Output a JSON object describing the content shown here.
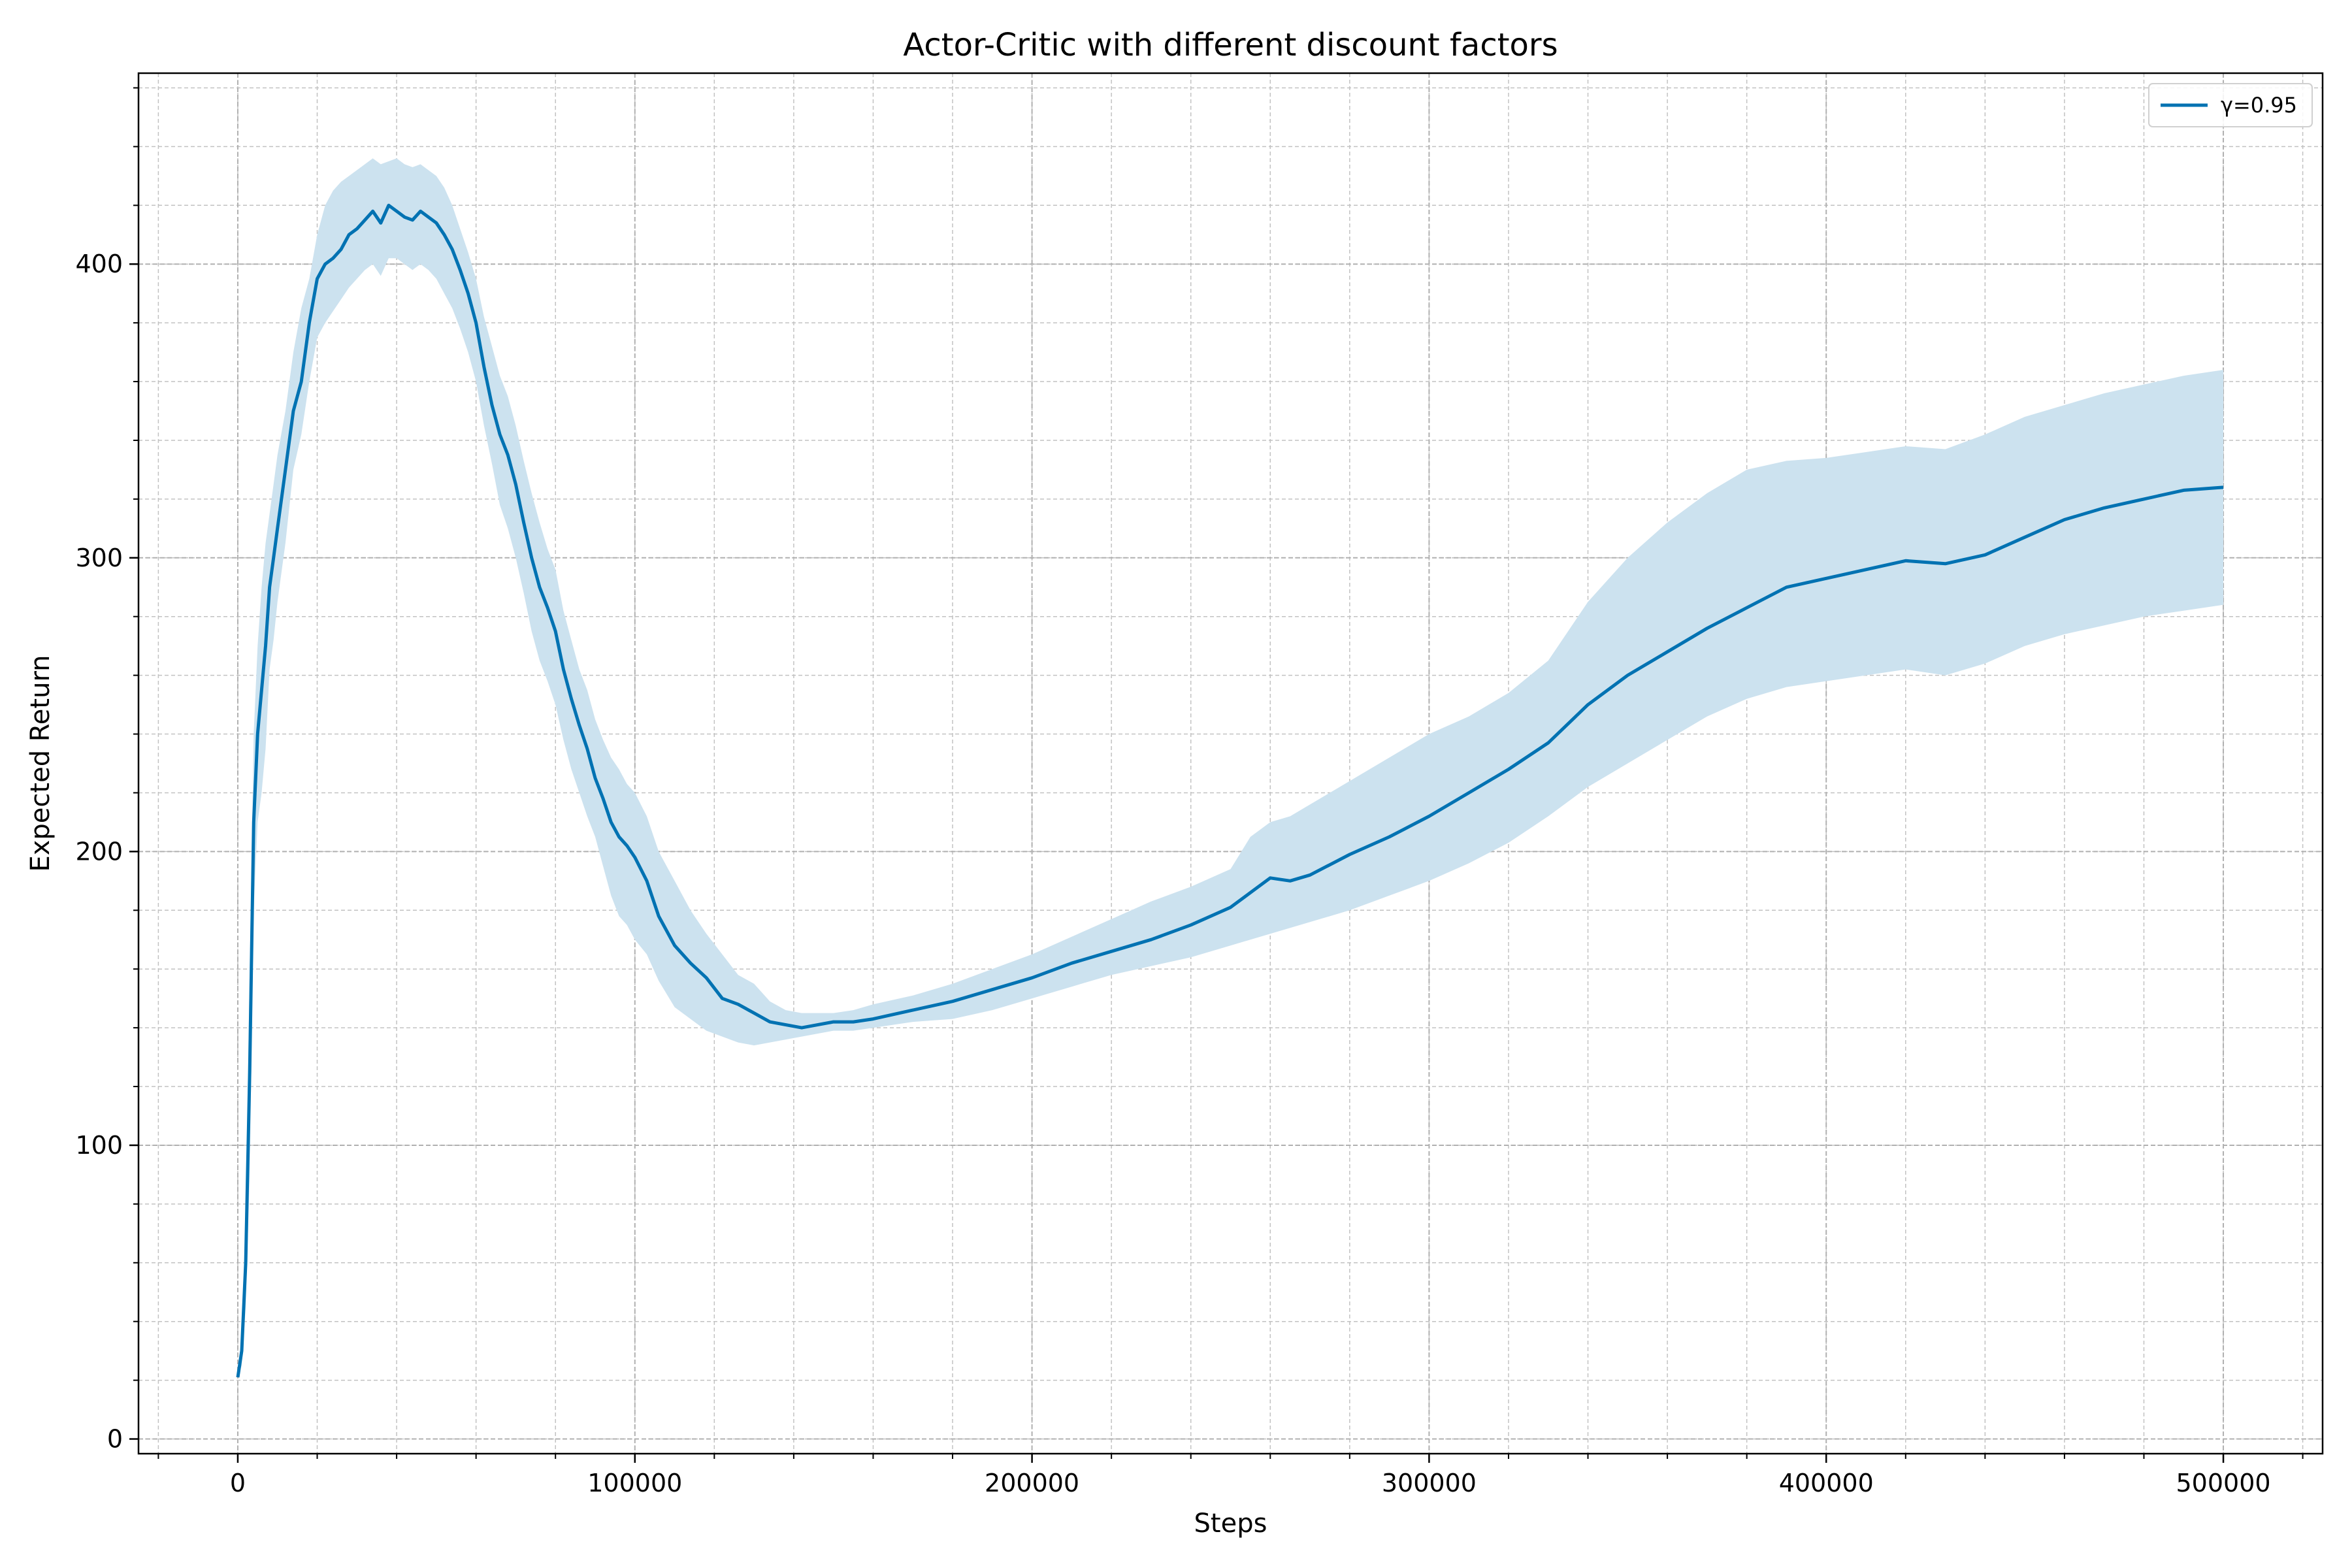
{
  "chart_data": {
    "type": "line",
    "title": "Actor-Critic with different discount factors",
    "xlabel": "Steps",
    "ylabel": "Expected Return",
    "xlim": [
      -25000,
      525000
    ],
    "ylim": [
      -5,
      465
    ],
    "xticks": [
      0,
      100000,
      200000,
      300000,
      400000,
      500000
    ],
    "yticks": [
      0,
      100,
      200,
      300,
      400
    ],
    "x_minor_step": 20000,
    "y_minor_step": 20,
    "grid": true,
    "legend_position": "top-right",
    "series": [
      {
        "name": "γ=0.95",
        "color": "#0072b2",
        "band_color": "#cce2ef",
        "x": [
          0,
          1000,
          2000,
          3000,
          4000,
          5000,
          6000,
          7000,
          8000,
          9000,
          10000,
          12000,
          14000,
          16000,
          18000,
          20000,
          22000,
          24000,
          26000,
          28000,
          30000,
          32000,
          34000,
          36000,
          38000,
          40000,
          42000,
          44000,
          46000,
          48000,
          50000,
          52000,
          54000,
          56000,
          58000,
          60000,
          62000,
          64000,
          66000,
          68000,
          70000,
          72000,
          74000,
          76000,
          78000,
          80000,
          82000,
          84000,
          86000,
          88000,
          90000,
          92000,
          94000,
          96000,
          98000,
          100000,
          103000,
          106000,
          110000,
          114000,
          118000,
          122000,
          126000,
          130000,
          134000,
          138000,
          142000,
          146000,
          150000,
          155000,
          160000,
          170000,
          180000,
          190000,
          200000,
          210000,
          220000,
          230000,
          240000,
          250000,
          255000,
          260000,
          265000,
          270000,
          280000,
          290000,
          300000,
          310000,
          320000,
          330000,
          340000,
          350000,
          360000,
          370000,
          380000,
          390000,
          400000,
          410000,
          420000,
          430000,
          440000,
          450000,
          460000,
          470000,
          480000,
          490000,
          500000
        ],
        "mean": [
          21,
          30,
          60,
          125,
          210,
          240,
          255,
          270,
          290,
          300,
          310,
          330,
          350,
          360,
          380,
          395,
          400,
          402,
          405,
          410,
          412,
          415,
          418,
          414,
          420,
          418,
          416,
          415,
          418,
          416,
          414,
          410,
          405,
          398,
          390,
          380,
          365,
          352,
          342,
          335,
          325,
          312,
          300,
          290,
          283,
          275,
          262,
          252,
          243,
          235,
          225,
          218,
          210,
          205,
          202,
          198,
          190,
          178,
          168,
          162,
          157,
          150,
          148,
          145,
          142,
          141,
          140,
          141,
          142,
          142,
          143,
          146,
          149,
          153,
          157,
          162,
          166,
          170,
          175,
          181,
          186,
          191,
          190,
          192,
          199,
          205,
          212,
          220,
          228,
          237,
          250,
          260,
          268,
          276,
          283,
          290,
          293,
          296,
          299,
          298,
          301,
          307,
          313,
          317,
          320,
          323,
          324
        ],
        "upper": [
          21,
          35,
          75,
          160,
          240,
          270,
          290,
          305,
          315,
          325,
          335,
          350,
          370,
          385,
          395,
          410,
          420,
          425,
          428,
          430,
          432,
          434,
          436,
          434,
          435,
          436,
          434,
          433,
          434,
          432,
          430,
          426,
          420,
          412,
          404,
          395,
          382,
          372,
          362,
          355,
          345,
          333,
          322,
          312,
          303,
          296,
          282,
          272,
          262,
          255,
          245,
          238,
          232,
          228,
          223,
          220,
          212,
          200,
          190,
          180,
          172,
          165,
          158,
          155,
          149,
          146,
          145,
          145,
          145,
          146,
          148,
          151,
          155,
          160,
          165,
          171,
          177,
          183,
          188,
          194,
          205,
          210,
          212,
          216,
          224,
          232,
          240,
          246,
          254,
          265,
          285,
          300,
          312,
          322,
          330,
          333,
          334,
          336,
          338,
          337,
          342,
          348,
          352,
          356,
          359,
          362,
          364
        ],
        "lower": [
          21,
          25,
          45,
          90,
          180,
          210,
          220,
          235,
          262,
          272,
          285,
          305,
          330,
          342,
          360,
          375,
          380,
          384,
          388,
          392,
          395,
          398,
          400,
          396,
          402,
          402,
          400,
          398,
          400,
          398,
          395,
          390,
          385,
          378,
          370,
          360,
          345,
          332,
          318,
          310,
          300,
          288,
          275,
          265,
          258,
          250,
          238,
          228,
          220,
          212,
          205,
          195,
          185,
          178,
          175,
          170,
          165,
          156,
          147,
          143,
          139,
          137,
          135,
          134,
          135,
          136,
          137,
          138,
          139,
          139,
          140,
          142,
          143,
          146,
          150,
          154,
          158,
          161,
          164,
          168,
          170,
          172,
          174,
          176,
          180,
          185,
          190,
          196,
          203,
          212,
          222,
          230,
          238,
          246,
          252,
          256,
          258,
          260,
          262,
          260,
          264,
          270,
          274,
          277,
          280,
          282,
          284
        ]
      }
    ]
  }
}
